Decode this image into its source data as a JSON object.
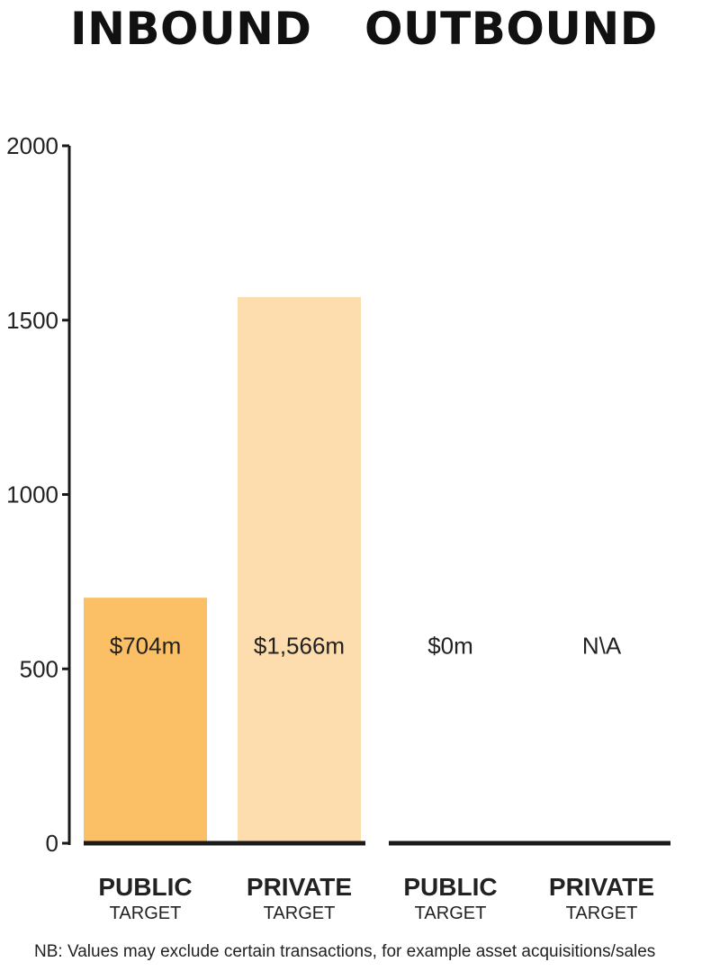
{
  "header": {
    "left_title": "INBOUND",
    "right_title": "OUTBOUND"
  },
  "chart_data": {
    "type": "bar",
    "categories": [
      {
        "main": "PUBLIC",
        "sub": "TARGET",
        "group": "INBOUND"
      },
      {
        "main": "PRIVATE",
        "sub": "TARGET",
        "group": "INBOUND"
      },
      {
        "main": "PUBLIC",
        "sub": "TARGET",
        "group": "OUTBOUND"
      },
      {
        "main": "PRIVATE",
        "sub": "TARGET",
        "group": "OUTBOUND"
      }
    ],
    "values": [
      704,
      1566,
      0,
      null
    ],
    "data_labels": [
      "$704m",
      "$1,566m",
      "$0m",
      "N\\A"
    ],
    "colors": [
      "#fbbf66",
      "#fddcae",
      "#fddcae",
      "#fddcae"
    ],
    "ylim": [
      0,
      2000
    ],
    "yticks": [
      0,
      500,
      1000,
      1500,
      2000
    ],
    "grid": false,
    "legend": "none"
  },
  "footnote": "NB: Values may exclude certain transactions, for example asset acquisitions/sales"
}
